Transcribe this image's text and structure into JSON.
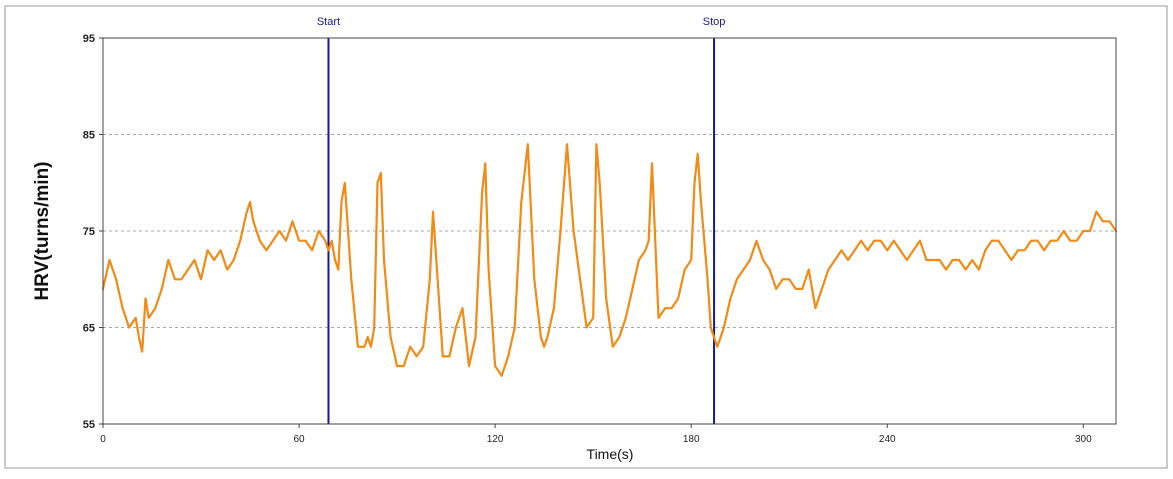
{
  "chart_data": {
    "type": "line",
    "xlabel": "Time(s)",
    "ylabel": "HRV(turns/min)",
    "xlim": [
      0,
      310
    ],
    "ylim": [
      55,
      95
    ],
    "xticks": [
      0,
      60,
      120,
      180,
      240,
      300
    ],
    "yticks": [
      55,
      65,
      75,
      85,
      95
    ],
    "grid": "horizontal-dashed",
    "series": [
      {
        "color": "#f28a14",
        "x": [
          0,
          2,
          4,
          6,
          8,
          10,
          11,
          12,
          13,
          14,
          16,
          18,
          20,
          22,
          24,
          26,
          28,
          30,
          32,
          34,
          36,
          38,
          40,
          42,
          44,
          45,
          46,
          47,
          48,
          50,
          52,
          54,
          56,
          58,
          60,
          62,
          64,
          66,
          68,
          69,
          70,
          71,
          72,
          73,
          74,
          76,
          78,
          80,
          81,
          82,
          83,
          84,
          85,
          86,
          88,
          90,
          92,
          94,
          96,
          98,
          100,
          101,
          102,
          104,
          106,
          108,
          110,
          112,
          114,
          116,
          117,
          118,
          120,
          122,
          124,
          126,
          128,
          130,
          132,
          134,
          135,
          136,
          138,
          140,
          142,
          144,
          146,
          148,
          150,
          151,
          152,
          154,
          156,
          158,
          160,
          162,
          164,
          166,
          167,
          168,
          170,
          172,
          174,
          176,
          178,
          180,
          181,
          182,
          183,
          184,
          185,
          186,
          188,
          190,
          192,
          194,
          196,
          198,
          200,
          202,
          204,
          206,
          208,
          210,
          212,
          214,
          216,
          218,
          220,
          222,
          224,
          226,
          228,
          230,
          232,
          234,
          236,
          238,
          240,
          242,
          244,
          246,
          248,
          250,
          252,
          254,
          256,
          258,
          260,
          262,
          264,
          266,
          268,
          270,
          272,
          274,
          276,
          278,
          280,
          282,
          284,
          286,
          288,
          290,
          292,
          294,
          296,
          298,
          300,
          302,
          304,
          306,
          308,
          310
        ],
        "y": [
          69,
          72,
          70,
          67,
          65,
          66,
          64,
          62.5,
          68,
          66,
          67,
          69,
          72,
          70,
          70,
          71,
          72,
          70,
          73,
          72,
          73,
          71,
          72,
          74,
          77,
          78,
          76,
          75,
          74,
          73,
          74,
          75,
          74,
          76,
          74,
          74,
          73,
          75,
          74,
          73,
          74,
          72,
          71,
          78,
          80,
          70,
          63,
          63,
          64,
          63,
          65,
          80,
          81,
          72,
          64,
          61,
          61,
          63,
          62,
          63,
          70,
          77,
          72,
          62,
          62,
          65,
          67,
          61,
          64,
          79,
          82,
          71,
          61,
          60,
          62,
          65,
          78,
          84,
          70,
          64,
          63,
          64,
          67,
          75,
          84,
          75,
          70,
          65,
          66,
          84,
          80,
          68,
          63,
          64,
          66,
          69,
          72,
          73,
          74,
          82,
          66,
          67,
          67,
          68,
          71,
          72,
          80,
          83,
          78,
          74,
          70,
          65,
          63,
          65,
          68,
          70,
          71,
          72,
          74,
          72,
          71,
          69,
          70,
          70,
          69,
          69,
          71,
          67,
          69,
          71,
          72,
          73,
          72,
          73,
          74,
          73,
          74,
          74,
          73,
          74,
          73,
          72,
          73,
          74,
          72,
          72,
          72,
          71,
          72,
          72,
          71,
          72,
          71,
          73,
          74,
          74,
          73,
          72,
          73,
          73,
          74,
          74,
          73,
          74,
          74,
          75,
          74,
          74,
          75,
          75,
          77,
          76,
          76,
          75
        ]
      }
    ],
    "annotations": [
      {
        "label": "Start",
        "x": 69,
        "color": "#1a1a8c"
      },
      {
        "label": "Stop",
        "x": 187,
        "color": "#1a1a8c"
      }
    ]
  }
}
